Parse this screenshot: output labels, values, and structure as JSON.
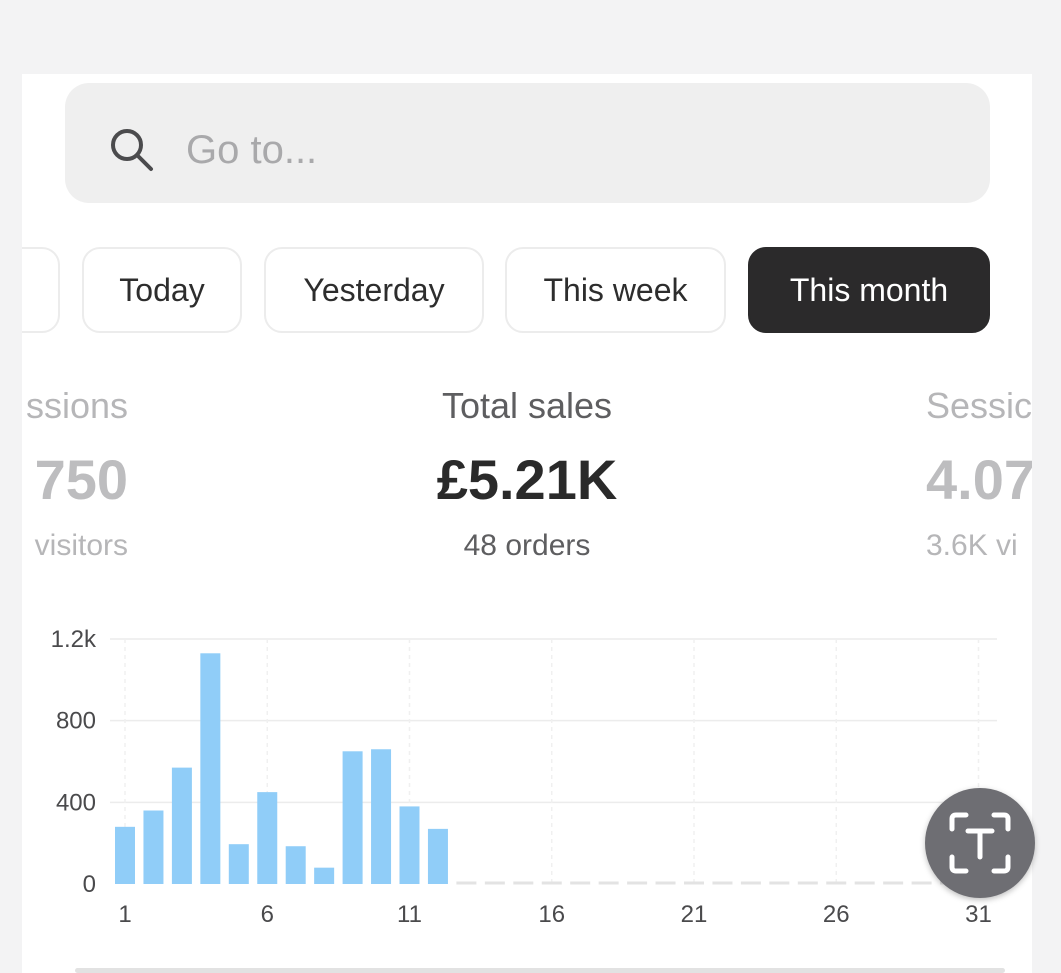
{
  "search": {
    "placeholder": "Go to...",
    "icon": "search-icon"
  },
  "date_filters": [
    {
      "label": "",
      "active": false
    },
    {
      "label": "Today",
      "active": false
    },
    {
      "label": "Yesterday",
      "active": false
    },
    {
      "label": "This week",
      "active": false
    },
    {
      "label": "This month",
      "active": true
    }
  ],
  "metrics": {
    "left": {
      "label": "ssions",
      "value": "750",
      "sub": "visitors"
    },
    "center": {
      "label": "Total sales",
      "value": "£5.21K",
      "sub": "48 orders"
    },
    "right": {
      "label": "Sessic",
      "value": "4.07",
      "sub": "3.6K vi"
    }
  },
  "colors": {
    "bar": "#90cdf8",
    "active_chip": "#2b2a2b",
    "fab": "#6e6e73"
  },
  "fab": {
    "icon": "text-recognition-icon"
  },
  "chart_data": {
    "type": "bar",
    "x": [
      1,
      2,
      3,
      4,
      5,
      6,
      7,
      8,
      9,
      10,
      11,
      12,
      13,
      14,
      15,
      16,
      17,
      18,
      19,
      20,
      21,
      22,
      23,
      24,
      25,
      26,
      27,
      28,
      29,
      30,
      31
    ],
    "values": [
      280,
      360,
      570,
      1130,
      195,
      450,
      185,
      80,
      650,
      660,
      380,
      270,
      0,
      0,
      0,
      0,
      0,
      0,
      0,
      0,
      0,
      0,
      0,
      0,
      0,
      0,
      0,
      0,
      0,
      0,
      0
    ],
    "x_ticks": [
      "1",
      "6",
      "11",
      "16",
      "21",
      "26",
      "31"
    ],
    "y_ticks": [
      "0",
      "400",
      "800",
      "1.2k"
    ],
    "ylim": [
      0,
      1200
    ],
    "grid": true
  }
}
